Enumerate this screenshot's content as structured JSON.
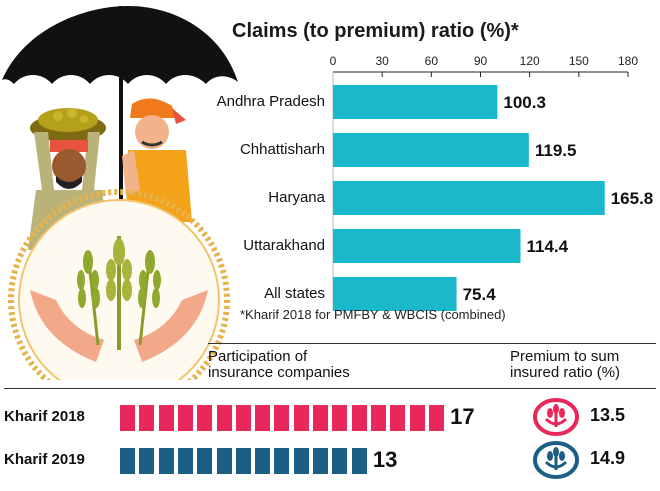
{
  "chart_data": [
    {
      "type": "bar",
      "orientation": "horizontal",
      "title": "Claims (to premium) ratio (%)*",
      "categories": [
        "Andhra Pradesh",
        "Chhattisharh",
        "Haryana",
        "Uttarakhand",
        "All states"
      ],
      "values": [
        100.3,
        119.5,
        165.8,
        114.4,
        75.4
      ],
      "value_labels": [
        "100.3",
        "119.5",
        "165.8",
        "114.4",
        "75.4"
      ],
      "xlim": [
        0,
        180
      ],
      "ticks": [
        "0",
        "30",
        "60",
        "90",
        "120",
        "150",
        "180"
      ],
      "tick_values": [
        0,
        30,
        60,
        90,
        120,
        150,
        180
      ],
      "axis_position": "top",
      "bar_color": "#1bb8cc",
      "footnote": "*Kharif 2018 for PMFBY & WBCIS (combined)"
    },
    {
      "type": "pictogram",
      "header": [
        "Participation of",
        "insurance companies"
      ],
      "side_header": [
        "Premium to sum",
        "insured ratio (%)"
      ],
      "rows": [
        {
          "label": "Kharif 2018",
          "count": 17,
          "count_label": "17",
          "ratio": "13.5",
          "color": "#e8275a"
        },
        {
          "label": "Kharif 2019",
          "count": 13,
          "count_label": "13",
          "ratio": "14.9",
          "color": "#1b5e86"
        }
      ]
    }
  ]
}
